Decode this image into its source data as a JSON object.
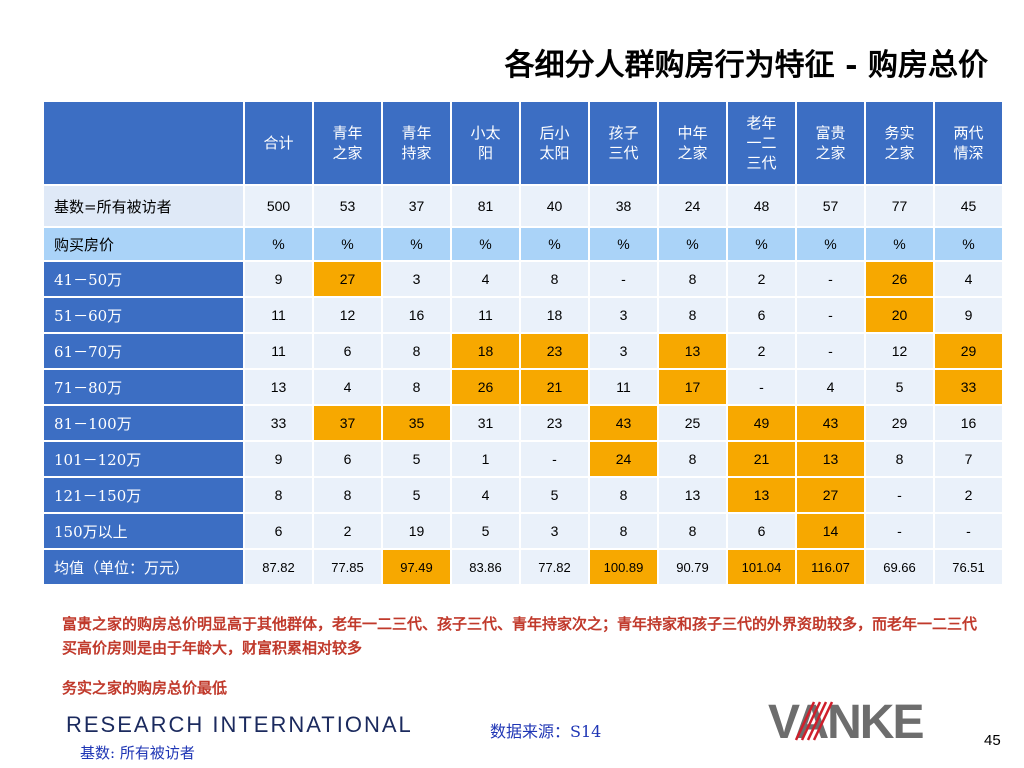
{
  "title": "各细分人群购房行为特征 - 购房总价",
  "table": {
    "columns": [
      "合计",
      "青年之家",
      "青年持家",
      "小太阳",
      "后小太阳",
      "孩子三代",
      "中年之家",
      "老年一二三代",
      "富贵之家",
      "务实之家",
      "两代情深"
    ],
    "rows": [
      {
        "label": "基数=所有被访者",
        "style": "light",
        "values": [
          "500",
          "53",
          "37",
          "81",
          "40",
          "38",
          "24",
          "48",
          "57",
          "77",
          "45"
        ],
        "highlight": []
      },
      {
        "label": "购买房价",
        "style": "pct",
        "values": [
          "%",
          "%",
          "%",
          "%",
          "%",
          "%",
          "%",
          "%",
          "%",
          "%",
          "%"
        ],
        "highlight": []
      },
      {
        "label": "41－50万",
        "style": "blue",
        "values": [
          "9",
          "27",
          "3",
          "4",
          "8",
          "-",
          "8",
          "2",
          "-",
          "26",
          "4"
        ],
        "highlight": [
          1,
          9
        ]
      },
      {
        "label": "51－60万",
        "style": "blue",
        "values": [
          "11",
          "12",
          "16",
          "11",
          "18",
          "3",
          "8",
          "6",
          "-",
          "20",
          "9"
        ],
        "highlight": [
          9
        ]
      },
      {
        "label": "61－70万",
        "style": "blue",
        "values": [
          "11",
          "6",
          "8",
          "18",
          "23",
          "3",
          "13",
          "2",
          "-",
          "12",
          "29"
        ],
        "highlight": [
          3,
          4,
          6,
          10
        ]
      },
      {
        "label": "71－80万",
        "style": "blue",
        "values": [
          "13",
          "4",
          "8",
          "26",
          "21",
          "11",
          "17",
          "-",
          "4",
          "5",
          "33"
        ],
        "highlight": [
          3,
          4,
          6,
          10
        ]
      },
      {
        "label": "81－100万",
        "style": "blue",
        "values": [
          "33",
          "37",
          "35",
          "31",
          "23",
          "43",
          "25",
          "49",
          "43",
          "29",
          "16"
        ],
        "highlight": [
          1,
          2,
          5,
          7,
          8
        ]
      },
      {
        "label": "101－120万",
        "style": "blue",
        "values": [
          "9",
          "6",
          "5",
          "1",
          "-",
          "24",
          "8",
          "21",
          "13",
          "8",
          "7"
        ],
        "highlight": [
          5,
          7,
          8
        ]
      },
      {
        "label": "121－150万",
        "style": "blue",
        "values": [
          "8",
          "8",
          "5",
          "4",
          "5",
          "8",
          "13",
          "13",
          "27",
          "-",
          "2"
        ],
        "highlight": [
          7,
          8
        ]
      },
      {
        "label": "150万以上",
        "style": "blue",
        "values": [
          "6",
          "2",
          "19",
          "5",
          "3",
          "8",
          "8",
          "6",
          "14",
          "-",
          "-"
        ],
        "highlight": [
          8
        ]
      },
      {
        "label": "均值（单位：万元）",
        "style": "blue",
        "small": true,
        "values": [
          "87.82",
          "77.85",
          "97.49",
          "83.86",
          "77.82",
          "100.89",
          "90.79",
          "101.04",
          "116.07",
          "69.66",
          "76.51"
        ],
        "highlight": [
          2,
          5,
          7,
          8
        ]
      }
    ]
  },
  "notes": [
    "富贵之家的购房总价明显高于其他群体，老年一二三代、孩子三代、青年持家次之；青年持家和孩子三代的外界资助较多，而老年一二三代买高价房则是由于年龄大，财富积累相对较多",
    "务实之家的购房总价最低"
  ],
  "footer": {
    "ri_logo": "RESEARCH INTERNATIONAL",
    "source": "数据来源：S14",
    "base": "基数: 所有被访者",
    "vanke_logo": "VANKE",
    "page_number": "45"
  },
  "colors": {
    "header_blue": "#3c6ec3",
    "highlight": "#f7a800",
    "note_red": "#c0392b",
    "source_blue": "#1f36b5"
  }
}
